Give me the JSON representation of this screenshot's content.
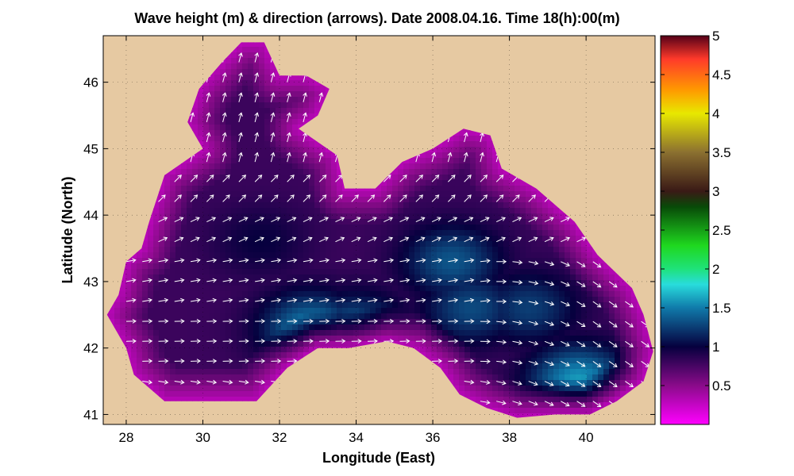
{
  "chart_data": {
    "type": "heatmap",
    "title": "Wave height (m) & direction (arrows). Date 2008.04.16. Time 18(h):00(m)",
    "xlabel": "Longitude (East)",
    "ylabel": "Latitude (North)",
    "xlim": [
      27.4,
      41.8
    ],
    "ylim": [
      40.85,
      46.7
    ],
    "xticks": [
      28,
      30,
      32,
      34,
      36,
      38,
      40
    ],
    "yticks": [
      41,
      42,
      43,
      44,
      45,
      46
    ],
    "grid": true,
    "colorbar": {
      "range": [
        0,
        5
      ],
      "ticks": [
        "0.5",
        "1",
        "1.5",
        "2",
        "2.5",
        "3",
        "3.5",
        "4",
        "4.5",
        "5"
      ],
      "tick_values": [
        0.5,
        1,
        1.5,
        2,
        2.5,
        3,
        3.5,
        4,
        4.5,
        5
      ],
      "colormap": [
        [
          0.0,
          "#ff00ff"
        ],
        [
          0.5,
          "#8a0b8a"
        ],
        [
          1.0,
          "#06003e"
        ],
        [
          1.5,
          "#107aaa"
        ],
        [
          1.8,
          "#28dcdc"
        ],
        [
          2.0,
          "#1fe27a"
        ],
        [
          2.3,
          "#1fd81f"
        ],
        [
          2.8,
          "#084a08"
        ],
        [
          3.0,
          "#3a1a16"
        ],
        [
          3.5,
          "#8b7030"
        ],
        [
          4.0,
          "#e8e800"
        ],
        [
          4.3,
          "#ff9a00"
        ],
        [
          4.7,
          "#ff3a2a"
        ],
        [
          5.0,
          "#550018"
        ]
      ]
    },
    "land_color": "#e6c9a2",
    "arrow_color": "#ffffff",
    "sea_outline": [
      [
        27.5,
        42.5
      ],
      [
        27.8,
        42.8
      ],
      [
        28.0,
        43.3
      ],
      [
        28.4,
        43.5
      ],
      [
        28.6,
        43.9
      ],
      [
        29.0,
        44.6
      ],
      [
        30.0,
        45.0
      ],
      [
        29.6,
        45.4
      ],
      [
        29.9,
        45.9
      ],
      [
        30.5,
        46.3
      ],
      [
        31.0,
        46.6
      ],
      [
        31.6,
        46.6
      ],
      [
        32.0,
        46.1
      ],
      [
        32.7,
        46.1
      ],
      [
        33.3,
        45.9
      ],
      [
        33.0,
        45.5
      ],
      [
        32.5,
        45.3
      ],
      [
        33.5,
        44.9
      ],
      [
        33.7,
        44.4
      ],
      [
        34.5,
        44.4
      ],
      [
        35.2,
        44.8
      ],
      [
        36.0,
        45.0
      ],
      [
        36.8,
        45.3
      ],
      [
        37.5,
        45.2
      ],
      [
        37.8,
        44.7
      ],
      [
        38.7,
        44.4
      ],
      [
        39.7,
        43.9
      ],
      [
        40.3,
        43.4
      ],
      [
        41.2,
        42.9
      ],
      [
        41.5,
        42.5
      ],
      [
        41.75,
        41.95
      ],
      [
        41.5,
        41.5
      ],
      [
        40.8,
        41.2
      ],
      [
        40.1,
        41.0
      ],
      [
        39.2,
        41.0
      ],
      [
        38.2,
        40.95
      ],
      [
        37.4,
        41.1
      ],
      [
        36.7,
        41.3
      ],
      [
        36.2,
        41.7
      ],
      [
        35.5,
        42.0
      ],
      [
        34.8,
        42.1
      ],
      [
        33.8,
        42.0
      ],
      [
        33.0,
        42.0
      ],
      [
        32.2,
        41.7
      ],
      [
        31.4,
        41.2
      ],
      [
        30.3,
        41.2
      ],
      [
        29.0,
        41.2
      ],
      [
        28.2,
        41.6
      ],
      [
        28.0,
        42.0
      ],
      [
        27.5,
        42.5
      ]
    ],
    "wave_height_field": {
      "background": 0.8,
      "coast_value": 0.3,
      "peaks": [
        {
          "lon": 32.8,
          "lat": 42.3,
          "height": 1.5
        },
        {
          "lon": 34.0,
          "lat": 42.3,
          "height": 1.35
        },
        {
          "lon": 36.5,
          "lat": 43.3,
          "height": 1.35
        },
        {
          "lon": 37.0,
          "lat": 42.6,
          "height": 1.3
        },
        {
          "lon": 38.5,
          "lat": 42.6,
          "height": 1.25
        },
        {
          "lon": 39.8,
          "lat": 41.5,
          "height": 1.6
        },
        {
          "lon": 31.5,
          "lat": 43.6,
          "height": 1.0
        }
      ]
    },
    "arrow_field": {
      "lon_start": 28.0,
      "lon_step": 0.42,
      "lat_start": 41.2,
      "lat_step": 0.3,
      "direction_deg": [
        {
          "lat_min": 44.7,
          "lat_max": 47.0,
          "angle": 75
        },
        {
          "lat_min": 43.9,
          "lat_max": 44.7,
          "angle": 45
        },
        {
          "lat_min": 43.3,
          "lat_max": 43.9,
          "angle": 25
        },
        {
          "lat_min": 42.6,
          "lat_max": 43.3,
          "angle": 10
        },
        {
          "lat_min": 41.8,
          "lat_max": 42.6,
          "angle": 2
        },
        {
          "lat_min": 40.0,
          "lat_max": 41.8,
          "angle": -8
        }
      ],
      "eastern_turn": {
        "lon_min": 37.0,
        "lat_max": 43.3,
        "angle": -35
      }
    }
  }
}
